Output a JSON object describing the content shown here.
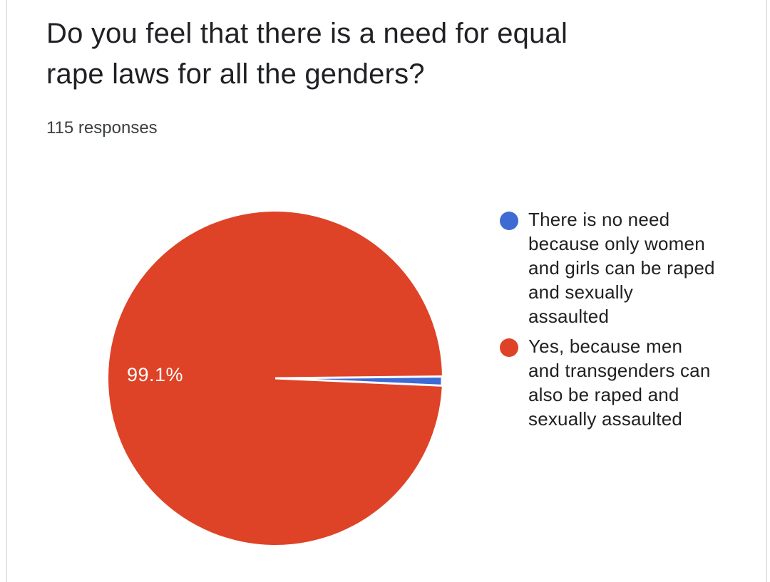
{
  "header": {
    "title_lines": [
      "Do you feel that there is a need for equal",
      "rape laws for all the genders?"
    ],
    "responses_label": "115 responses"
  },
  "legend": {
    "items": [
      {
        "label": "There is no need because only women and girls can be raped and sexually assaulted",
        "lines": [
          "There is no need",
          "because only women",
          "and girls can be raped",
          "and sexually",
          "assaulted"
        ],
        "color": "#3E6AD3"
      },
      {
        "label": "Yes, because men and transgenders can also be raped and sexually assaulted",
        "lines": [
          "Yes, because men",
          "and transgenders can",
          "also be raped and",
          "sexually assaulted"
        ],
        "color": "#DE4327"
      }
    ]
  },
  "chart_data": {
    "type": "pie",
    "title": "Do you feel that there is a need for equal rape laws for all the genders?",
    "subtitle": "115 responses",
    "total_responses": 115,
    "legend_position": "right",
    "slices": [
      {
        "label": "There is no need because only women and girls can be raped and sexually assaulted",
        "value": 1,
        "percent": 0.9,
        "color": "#3E6AD3"
      },
      {
        "label": "Yes, because men and transgenders can also be raped and sexually assaulted",
        "value": 114,
        "percent": 99.1,
        "percent_label": "99.1%",
        "color": "#DE4327"
      }
    ]
  },
  "colors": {
    "card_border": "#e6e6e6",
    "title_text": "#202124",
    "subtitle_text": "#3c4043",
    "legend_text": "#212121",
    "pie_label_text": "#ffffff",
    "slice_gap_stroke": "#ffffff"
  }
}
